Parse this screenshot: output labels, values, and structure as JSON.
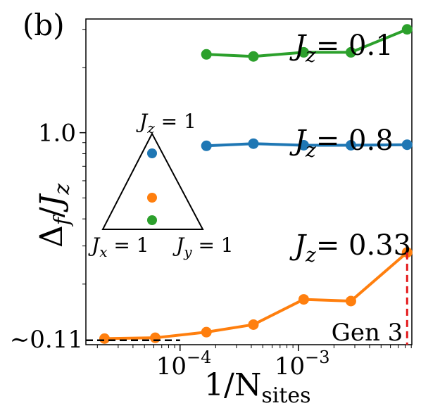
{
  "panel_label": "(b)",
  "chart_data": {
    "type": "line",
    "title": "",
    "xlabel_base": "1/N",
    "xlabel_sub": "sites",
    "ylabel_html": "Δ_f/J_z",
    "xscale": "log",
    "yscale": "log",
    "xlim": [
      1.6e-05,
      0.0091
    ],
    "ylim": [
      0.105,
      3.35
    ],
    "xticks": [
      {
        "value": 0.0001,
        "label": "10",
        "exp": "−4"
      },
      {
        "value": 0.001,
        "label": "10",
        "exp": "−3"
      }
    ],
    "yticks": [
      {
        "value": 1.0,
        "label": "1.0"
      }
    ],
    "y_annotation": {
      "value": 0.11,
      "label": "∼0.11"
    },
    "grid": false,
    "series": [
      {
        "name": "J_z = 0.1",
        "label_var": "J",
        "label_sub": "z",
        "label_eq": "= 0.1",
        "color": "#2ca02c",
        "x": [
          0.000167,
          0.000417,
          0.00111,
          0.00278,
          0.0083
        ],
        "y": [
          2.3,
          2.25,
          2.35,
          2.35,
          3.0
        ]
      },
      {
        "name": "J_z = 0.8",
        "label_var": "J",
        "label_sub": "z",
        "label_eq": "= 0.8",
        "color": "#1f77b4",
        "x": [
          0.000167,
          0.000417,
          0.00111,
          0.00278,
          0.0083
        ],
        "y": [
          0.87,
          0.89,
          0.875,
          0.875,
          0.88
        ]
      },
      {
        "name": "J_z = 0.33",
        "label_var": "J",
        "label_sub": "z",
        "label_eq": "= 0.33",
        "color": "#ff7f0e",
        "x": [
          2.3e-05,
          6.17e-05,
          0.000167,
          0.000417,
          0.00111,
          0.00278,
          0.0083
        ],
        "y": [
          0.112,
          0.113,
          0.12,
          0.13,
          0.17,
          0.167,
          0.28
        ]
      }
    ],
    "annotations": [
      {
        "label": "Gen 3",
        "x_line": 0.0083,
        "color": "#e41a1c",
        "style": "dashed-vertical"
      }
    ],
    "inset": {
      "top_label": "J_z = 1",
      "left_label": "J_x = 1",
      "right_label": "J_y = 1",
      "dots": [
        {
          "series": "J_z = 0.8",
          "color": "#1f77b4"
        },
        {
          "series": "J_z = 0.33",
          "color": "#ff7f0e"
        },
        {
          "series": "J_z = 0.1",
          "color": "#2ca02c"
        }
      ]
    }
  }
}
